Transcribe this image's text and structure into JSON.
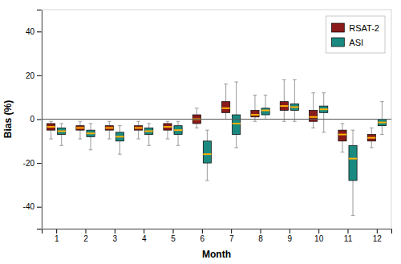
{
  "chart_data": {
    "type": "box",
    "xlabel": "Month",
    "ylabel": "Bias (%)",
    "x": [
      1,
      2,
      3,
      4,
      5,
      6,
      7,
      8,
      9,
      10,
      11,
      12
    ],
    "xlim": [
      0.5,
      12.5
    ],
    "xticks": [
      1,
      2,
      3,
      4,
      5,
      6,
      7,
      8,
      9,
      10,
      11,
      12
    ],
    "ylim": [
      -50,
      50
    ],
    "yticks": [
      -40,
      -20,
      0,
      20,
      40
    ],
    "grid": false,
    "legend": "upper right",
    "hline": 0,
    "series": [
      {
        "name": "RSAT-2",
        "color": "#8B1A1A",
        "q1": [
          -5,
          -5,
          -5,
          -5,
          -5,
          -2,
          3,
          1,
          4,
          -1,
          -10,
          -10
        ],
        "q3": [
          -2,
          -3,
          -3,
          -3,
          -2,
          2,
          8,
          4,
          8,
          4,
          -5,
          -7
        ],
        "med": [
          -3.5,
          -4,
          -4,
          -4,
          -3.5,
          0,
          5,
          2,
          6,
          1,
          -7,
          -8.5
        ],
        "whislo": [
          -9,
          -9,
          -9,
          -9,
          -9,
          -4,
          0,
          -1,
          -1,
          -4,
          -15,
          -13
        ],
        "whishi": [
          -1,
          -1,
          -1,
          -1,
          -1,
          5,
          16,
          11,
          18,
          12,
          -2,
          -4
        ]
      },
      {
        "name": "ASI",
        "color": "#1A8A80",
        "q1": [
          -7,
          -8,
          -10,
          -7,
          -7,
          -20,
          -7,
          2,
          4,
          3,
          -28,
          -3
        ],
        "q3": [
          -4,
          -5,
          -6,
          -4,
          -3,
          -10,
          2,
          5,
          7,
          6,
          -12,
          0
        ],
        "med": [
          -5.5,
          -6.5,
          -8,
          -5.5,
          -5,
          -16,
          -2,
          4,
          5.5,
          4.5,
          -18,
          -1.5
        ],
        "whislo": [
          -12,
          -14,
          -16,
          -12,
          -12,
          -28,
          -13,
          0,
          -1,
          -6,
          -44,
          -7
        ],
        "whishi": [
          -2,
          -2,
          -3,
          -2,
          -1,
          -5,
          17,
          11,
          18,
          12,
          -5,
          8
        ]
      }
    ]
  }
}
